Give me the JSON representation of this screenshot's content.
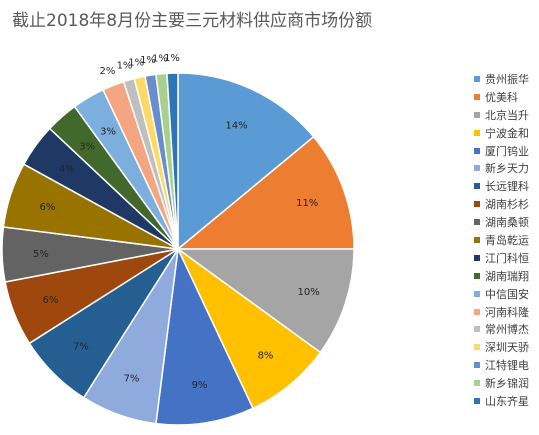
{
  "chart_data": {
    "type": "pie",
    "title": "截止2018年8月份主要三元材料供应商市场份额",
    "slices": [
      {
        "name": "贵州振华",
        "value": 14,
        "label": "14%",
        "color": "#5B9BD5"
      },
      {
        "name": "优美科",
        "value": 11,
        "label": "11%",
        "color": "#ED7D31"
      },
      {
        "name": "北京当升",
        "value": 10,
        "label": "10%",
        "color": "#A5A5A5"
      },
      {
        "name": "宁波金和",
        "value": 8,
        "label": "8%",
        "color": "#FFC000"
      },
      {
        "name": "厦门钨业",
        "value": 9,
        "label": "9%",
        "color": "#4472C4"
      },
      {
        "name": "新乡天力",
        "value": 7,
        "label": "7%",
        "color": "#8FAADC"
      },
      {
        "name": "长远锂科",
        "value": 7,
        "label": "7%",
        "color": "#255E91"
      },
      {
        "name": "湖南杉杉",
        "value": 6,
        "label": "6%",
        "color": "#9E480E"
      },
      {
        "name": "湖南桑顿",
        "value": 5,
        "label": "5%",
        "color": "#636363"
      },
      {
        "name": "青岛乾运",
        "value": 6,
        "label": "6%",
        "color": "#997300"
      },
      {
        "name": "江门科恒",
        "value": 4,
        "label": "4%",
        "color": "#203864"
      },
      {
        "name": "湖南瑞翔",
        "value": 3,
        "label": "3%",
        "color": "#43682B"
      },
      {
        "name": "中信国安",
        "value": 3,
        "label": "3%",
        "color": "#7CAFDD"
      },
      {
        "name": "河南科隆",
        "value": 2,
        "label": "2%",
        "color": "#F4A582"
      },
      {
        "name": "常州博杰",
        "value": 1,
        "label": "1%",
        "color": "#BFBFBF"
      },
      {
        "name": "深圳天骄",
        "value": 1,
        "label": "1%",
        "color": "#FFD966"
      },
      {
        "name": "江特锂电",
        "value": 1,
        "label": "1%",
        "color": "#698ED0"
      },
      {
        "name": "新乡锦润",
        "value": 1,
        "label": "1%",
        "color": "#A9D18E"
      },
      {
        "name": "山东齐星",
        "value": 1,
        "label": "1%",
        "color": "#2E75B6"
      }
    ],
    "legend_position": "right"
  }
}
